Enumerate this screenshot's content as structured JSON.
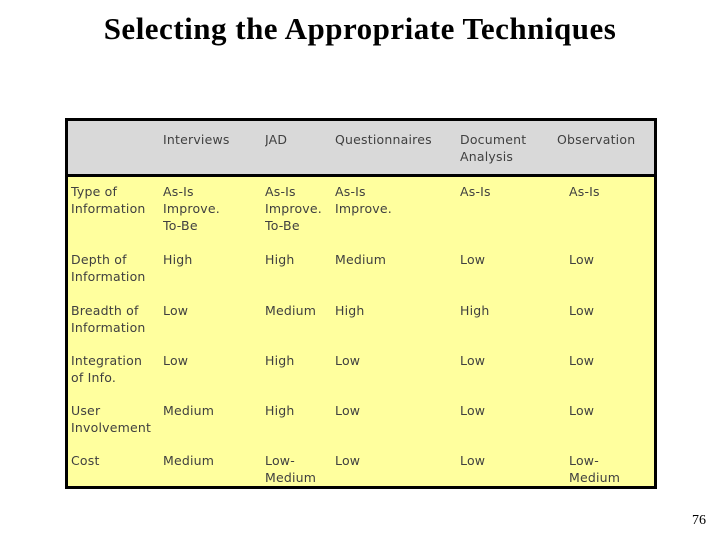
{
  "title": "Selecting the Appropriate Techniques",
  "page_number": "76",
  "colors": {
    "header_bg": "#d9d9d9",
    "body_bg": "#ffff9e",
    "border": "#000000",
    "table_text": "#404040"
  },
  "table": {
    "headers": [
      "",
      "Interviews",
      "JAD",
      "Questionnaires",
      "Document\nAnalysis",
      "Observation"
    ],
    "rows": [
      {
        "label": "Type of\nInformation",
        "values": [
          "As-Is\nImprove.\nTo-Be",
          "As-Is\nImprove.\nTo-Be",
          "As-Is\nImprove.",
          "As-Is",
          "As-Is"
        ]
      },
      {
        "label": "Depth of\nInformation",
        "values": [
          "High",
          "High",
          "Medium",
          "Low",
          "Low"
        ]
      },
      {
        "label": "Breadth of\nInformation",
        "values": [
          "Low",
          "Medium",
          "High",
          "High",
          "Low"
        ]
      },
      {
        "label": "Integration\nof Info.",
        "values": [
          "Low",
          "High",
          "Low",
          "Low",
          "Low"
        ]
      },
      {
        "label": "User\nInvolvement",
        "values": [
          "Medium",
          "High",
          "Low",
          "Low",
          "Low"
        ]
      },
      {
        "label": "Cost",
        "values": [
          "Medium",
          "Low-\nMedium",
          "Low",
          "Low",
          "Low-\nMedium"
        ]
      }
    ]
  }
}
